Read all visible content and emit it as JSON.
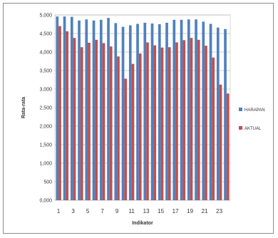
{
  "chart_data": {
    "type": "bar",
    "xlabel": "Indikator",
    "ylabel": "Rata-rata",
    "ylim": [
      0,
      5000
    ],
    "yticks": [
      "0,000",
      "500",
      "1,000",
      "1,500",
      "2,000",
      "2,500",
      "3,000",
      "3,500",
      "4,000",
      "4,500",
      "5,000"
    ],
    "categories": [
      "1",
      "2",
      "3",
      "4",
      "5",
      "6",
      "7",
      "8",
      "9",
      "10",
      "11",
      "12",
      "13",
      "14",
      "15",
      "16",
      "17",
      "18",
      "19",
      "20",
      "21",
      "22",
      "23",
      "24"
    ],
    "xtick_labels_shown": [
      "1",
      "3",
      "5",
      "7",
      "9",
      "11",
      "13",
      "15",
      "17",
      "19",
      "21",
      "23"
    ],
    "series": [
      {
        "name": "HARAPAN",
        "color": "#4f81bd",
        "values": [
          4960,
          4960,
          4950,
          4850,
          4880,
          4850,
          4870,
          4920,
          4780,
          4680,
          4720,
          4760,
          4790,
          4770,
          4750,
          4790,
          4870,
          4870,
          4880,
          4880,
          4820,
          4760,
          4660,
          4620
        ]
      },
      {
        "name": "AKTUAL",
        "color": "#c0504d",
        "values": [
          4700,
          4560,
          4380,
          4130,
          4250,
          4330,
          4240,
          4150,
          3880,
          3280,
          3680,
          3960,
          4260,
          4180,
          4120,
          4130,
          4260,
          4320,
          4380,
          4330,
          4170,
          3850,
          3120,
          2880
        ]
      }
    ],
    "grid": "horizontal",
    "legend_position": "right"
  }
}
